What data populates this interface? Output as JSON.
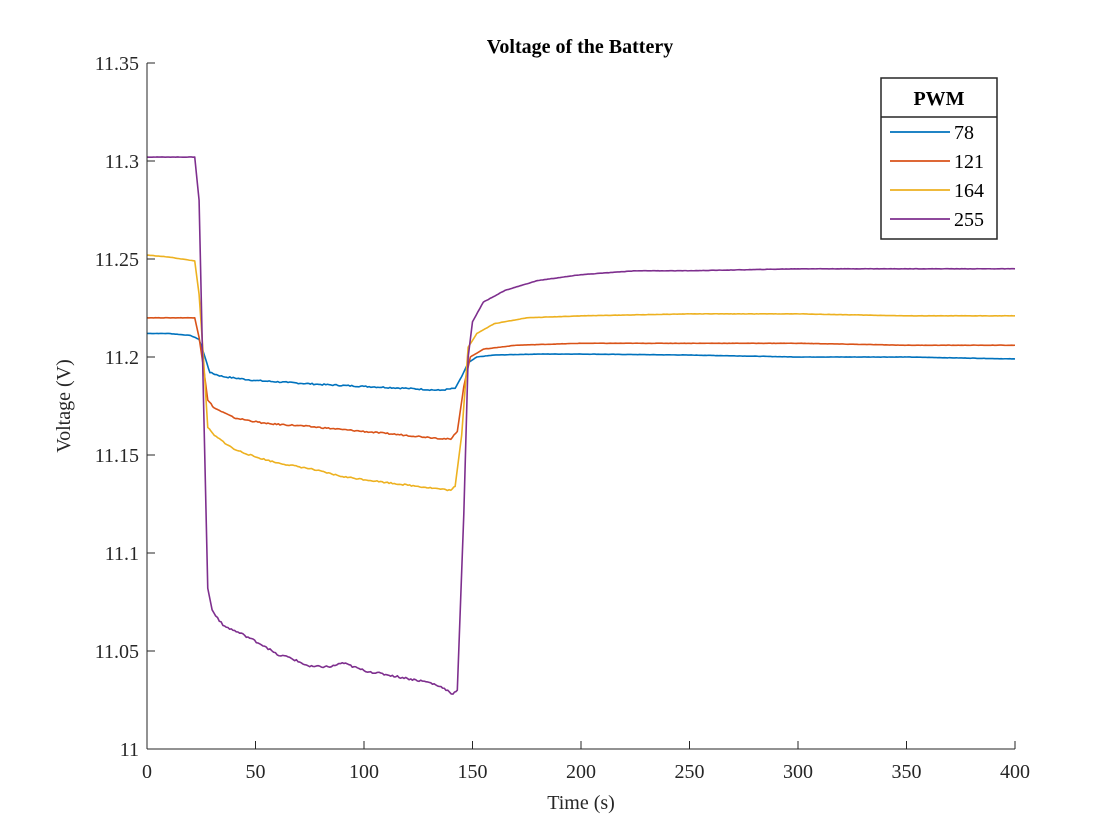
{
  "chart_data": {
    "type": "line",
    "title": "Voltage of the Battery",
    "xlabel": "Time (s)",
    "ylabel": "Voltage (V)",
    "xlim": [
      0,
      400
    ],
    "ylim": [
      11,
      11.35
    ],
    "x_ticks": [
      "0",
      "50",
      "100",
      "150",
      "200",
      "250",
      "300",
      "350",
      "400"
    ],
    "y_ticks": [
      "11",
      "11.05",
      "11.1",
      "11.15",
      "11.2",
      "11.25",
      "11.3",
      "11.35"
    ],
    "grid": false,
    "legend": {
      "title": "PWM",
      "position": "top-right"
    },
    "series": [
      {
        "name": "78",
        "color": "#0072BD",
        "points": [
          [
            0,
            11.212
          ],
          [
            10,
            11.212
          ],
          [
            20,
            11.211
          ],
          [
            24,
            11.209
          ],
          [
            27,
            11.199
          ],
          [
            29,
            11.192
          ],
          [
            35,
            11.19
          ],
          [
            50,
            11.188
          ],
          [
            65,
            11.187
          ],
          [
            80,
            11.186
          ],
          [
            100,
            11.185
          ],
          [
            120,
            11.184
          ],
          [
            135,
            11.183
          ],
          [
            142,
            11.184
          ],
          [
            145,
            11.19
          ],
          [
            148,
            11.197
          ],
          [
            152,
            11.2
          ],
          [
            160,
            11.201
          ],
          [
            180,
            11.2015
          ],
          [
            200,
            11.2015
          ],
          [
            250,
            11.201
          ],
          [
            300,
            11.2
          ],
          [
            350,
            11.2
          ],
          [
            400,
            11.199
          ]
        ]
      },
      {
        "name": "121",
        "color": "#D95319",
        "points": [
          [
            0,
            11.22
          ],
          [
            10,
            11.22
          ],
          [
            22,
            11.22
          ],
          [
            24,
            11.21
          ],
          [
            26,
            11.195
          ],
          [
            28,
            11.178
          ],
          [
            31,
            11.174
          ],
          [
            40,
            11.169
          ],
          [
            55,
            11.166
          ],
          [
            70,
            11.165
          ],
          [
            90,
            11.163
          ],
          [
            110,
            11.161
          ],
          [
            130,
            11.159
          ],
          [
            140,
            11.158
          ],
          [
            143,
            11.162
          ],
          [
            146,
            11.185
          ],
          [
            149,
            11.2
          ],
          [
            155,
            11.204
          ],
          [
            170,
            11.206
          ],
          [
            200,
            11.207
          ],
          [
            250,
            11.207
          ],
          [
            300,
            11.207
          ],
          [
            350,
            11.206
          ],
          [
            400,
            11.206
          ]
        ]
      },
      {
        "name": "164",
        "color": "#EDB120",
        "points": [
          [
            0,
            11.252
          ],
          [
            10,
            11.251
          ],
          [
            22,
            11.249
          ],
          [
            24,
            11.232
          ],
          [
            26,
            11.2
          ],
          [
            28,
            11.164
          ],
          [
            31,
            11.16
          ],
          [
            40,
            11.153
          ],
          [
            50,
            11.149
          ],
          [
            60,
            11.146
          ],
          [
            75,
            11.143
          ],
          [
            90,
            11.139
          ],
          [
            110,
            11.136
          ],
          [
            125,
            11.134
          ],
          [
            140,
            11.132
          ],
          [
            142,
            11.134
          ],
          [
            145,
            11.16
          ],
          [
            148,
            11.205
          ],
          [
            152,
            11.212
          ],
          [
            160,
            11.217
          ],
          [
            175,
            11.22
          ],
          [
            200,
            11.221
          ],
          [
            250,
            11.222
          ],
          [
            300,
            11.222
          ],
          [
            350,
            11.221
          ],
          [
            400,
            11.221
          ]
        ]
      },
      {
        "name": "255",
        "color": "#7E2F8E",
        "points": [
          [
            0,
            11.302
          ],
          [
            10,
            11.302
          ],
          [
            22,
            11.302
          ],
          [
            24,
            11.28
          ],
          [
            26,
            11.18
          ],
          [
            28,
            11.082
          ],
          [
            30,
            11.071
          ],
          [
            35,
            11.063
          ],
          [
            45,
            11.058
          ],
          [
            55,
            11.052
          ],
          [
            60,
            11.048
          ],
          [
            65,
            11.047
          ],
          [
            75,
            11.042
          ],
          [
            85,
            11.042
          ],
          [
            90,
            11.044
          ],
          [
            100,
            11.04
          ],
          [
            110,
            11.038
          ],
          [
            120,
            11.036
          ],
          [
            130,
            11.034
          ],
          [
            137,
            11.031
          ],
          [
            141,
            11.028
          ],
          [
            143,
            11.03
          ],
          [
            146,
            11.12
          ],
          [
            148,
            11.2
          ],
          [
            150,
            11.218
          ],
          [
            155,
            11.228
          ],
          [
            165,
            11.234
          ],
          [
            180,
            11.239
          ],
          [
            200,
            11.242
          ],
          [
            225,
            11.244
          ],
          [
            250,
            11.244
          ],
          [
            300,
            11.245
          ],
          [
            350,
            11.245
          ],
          [
            400,
            11.245
          ]
        ]
      }
    ]
  }
}
